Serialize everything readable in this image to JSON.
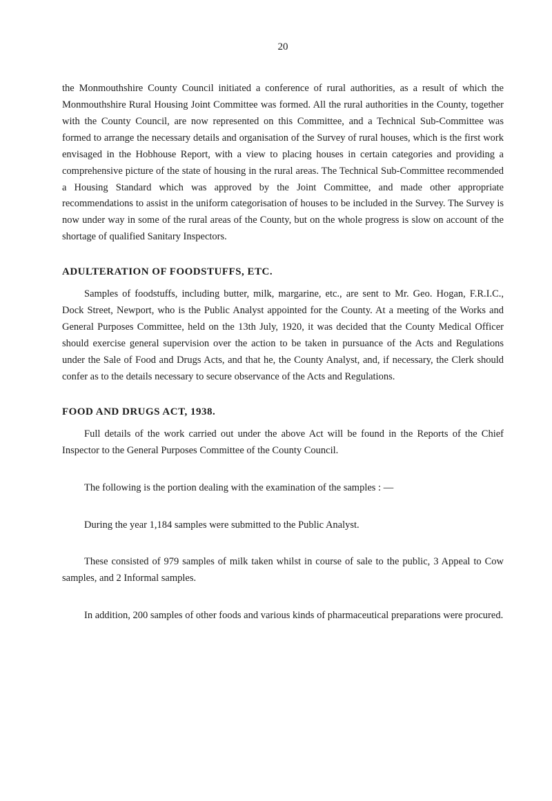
{
  "page_number": "20",
  "para1": "the Monmouthshire County Council initiated a conference of rural authorities, as a result of which the Monmouthshire Rural Housing Joint Committee was formed. All the rural authorities in the County, together with the County Council, are now represented on this Committee, and a Technical Sub-Committee was formed to arrange the necessary details and organisation of the Survey of rural houses, which is the first work envisaged in the Hobhouse Report, with a view to placing houses in certain categories and providing a comprehensive picture of the state of housing in the rural areas. The Technical Sub-Committee recommended a Housing Standard which was approved by the Joint Committee, and made other appropriate recommendations to assist in the uniform categorisation of houses to be included in the Survey. The Survey is now under way in some of the rural areas of the County, but on the whole progress is slow on account of the shortage of qualified Sanitary Inspectors.",
  "heading1": "ADULTERATION OF FOODSTUFFS, ETC.",
  "para2": "Samples of foodstuffs, including butter, milk, margarine, etc., are sent to Mr. Geo. Hogan, F.R.I.C., Dock Street, Newport, who is the Public Analyst appointed for the County. At a meeting of the Works and General Purposes Committee, held on the 13th July, 1920, it was decided that the County Medical Officer should exercise general supervision over the action to be taken in pursuance of the Acts and Regulations under the Sale of Food and Drugs Acts, and that he, the County Analyst, and, if necessary, the Clerk should confer as to the details necessary to secure observance of the Acts and Regulations.",
  "heading2": "FOOD AND DRUGS ACT, 1938.",
  "para3": "Full details of the work carried out under the above Act will be found in the Reports of the Chief Inspector to the General Purposes Committee of the County Council.",
  "para4": "The following is the portion dealing with the examination of the samples : —",
  "para5": "During the year 1,184 samples were submitted to the Public Analyst.",
  "para6": "These consisted of 979 samples of milk taken whilst in course of sale to the public, 3 Appeal to Cow samples, and 2 Informal samples.",
  "para7": "In addition, 200 samples of other foods and various kinds of pharmaceutical preparations were procured."
}
